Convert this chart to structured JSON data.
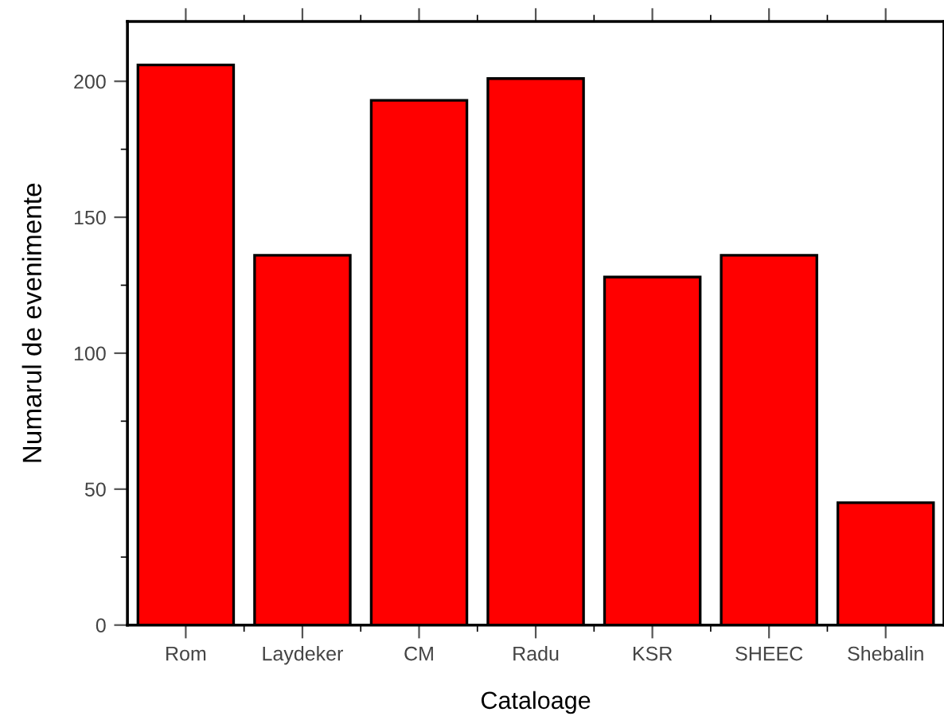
{
  "chart_data": {
    "type": "bar",
    "xlabel": "Cataloage",
    "ylabel": "Numarul de evenimente",
    "categories": [
      "Rom",
      "Laydeker",
      "CM",
      "Radu",
      "KSR",
      "SHEEC",
      "Shebalin"
    ],
    "values": [
      206,
      136,
      193,
      201,
      128,
      136,
      45
    ],
    "color": "#ff0000",
    "ylim": [
      0,
      222
    ],
    "yticks": [
      0,
      50,
      100,
      150,
      200
    ],
    "grid": false
  }
}
